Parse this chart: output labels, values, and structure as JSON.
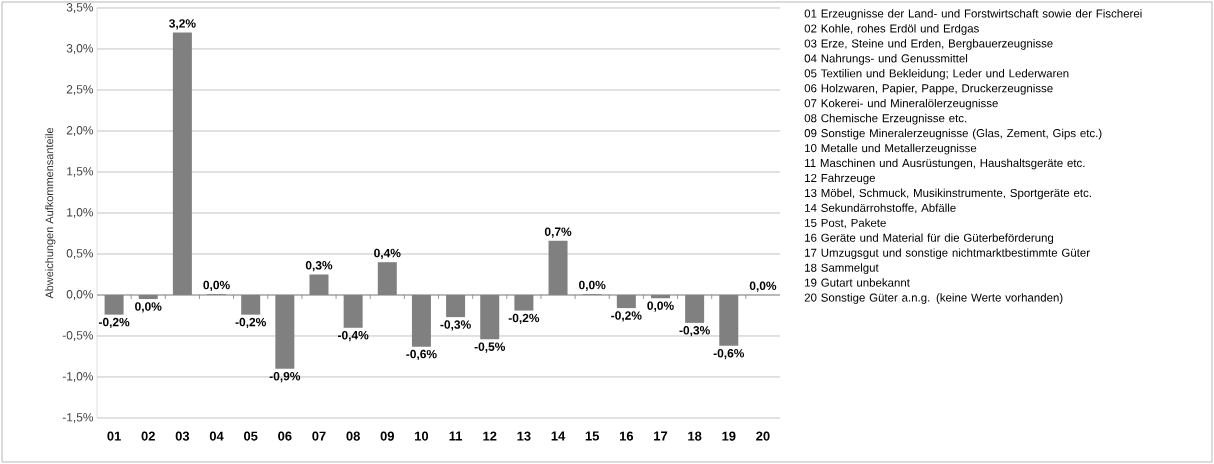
{
  "chart_data": {
    "type": "bar",
    "ylabel": "Abweichungen Aufkommensanteile",
    "categories": [
      "01",
      "02",
      "03",
      "04",
      "05",
      "06",
      "07",
      "08",
      "09",
      "10",
      "11",
      "12",
      "13",
      "14",
      "15",
      "16",
      "17",
      "18",
      "19",
      "20"
    ],
    "values": [
      -0.24,
      -0.05,
      3.2,
      0.01,
      -0.24,
      -0.9,
      0.25,
      -0.4,
      0.4,
      -0.63,
      -0.27,
      -0.54,
      -0.19,
      0.66,
      0.01,
      -0.16,
      -0.04,
      -0.34,
      -0.62,
      0
    ],
    "value_labels": [
      "-0,2%",
      "0,0%",
      "3,2%",
      "0,0%",
      "-0,2%",
      "-0,9%",
      "0,3%",
      "-0,4%",
      "0,4%",
      "-0,6%",
      "-0,3%",
      "-0,5%",
      "-0,2%",
      "0,7%",
      "0,0%",
      "-0,2%",
      "0,0%",
      "-0,3%",
      "-0,6%",
      "0,0%"
    ],
    "color": "#808080",
    "grid": "y",
    "ylim": [
      -1.5,
      3.5
    ],
    "yticks": [
      {
        "value": -1.5,
        "label": "-1,5%"
      },
      {
        "value": -1.0,
        "label": "-1,0%"
      },
      {
        "value": -0.5,
        "label": "-0,5%"
      },
      {
        "value": 0,
        "label": "0,0%"
      },
      {
        "value": 0.5,
        "label": "0,5%"
      },
      {
        "value": 1.0,
        "label": "1,0%"
      },
      {
        "value": 1.5,
        "label": "1,5%"
      },
      {
        "value": 2.0,
        "label": "2,0%"
      },
      {
        "value": 2.5,
        "label": "2,5%"
      },
      {
        "value": 3.0,
        "label": "3,0%"
      },
      {
        "value": 3.5,
        "label": "3,5%"
      }
    ],
    "annotations": [
      "01 Erzeugnisse der Land- und Forstwirtschaft sowie der Fischerei",
      "02 Kohle, rohes Erdöl und Erdgas",
      "03 Erze, Steine und Erden, Bergbauerzeugnisse",
      "04 Nahrungs- und Genussmittel",
      "05 Textilien und Bekleidung; Leder und Lederwaren",
      "06 Holzwaren, Papier, Pappe, Druckerzeugnisse",
      "07 Kokerei- und Mineralölerzeugnisse",
      "08 Chemische Erzeugnisse etc.",
      "09 Sonstige Mineralerzeugnisse (Glas, Zement, Gips etc.)",
      "10 Metalle und Metallerzeugnisse",
      "11 Maschinen und Ausrüstungen, Haushaltsgeräte etc.",
      "12 Fahrzeuge",
      "13 Möbel, Schmuck, Musikinstrumente, Sportgeräte etc.",
      "14 Sekundärrohstoffe, Abfälle",
      "15 Post, Pakete",
      "16 Geräte und Material für die Güterbeförderung",
      "17 Umzugsgut und sonstige nichtmarktbestimmte Güter",
      "18 Sammelgut",
      "19 Gutart unbekannt",
      "20 Sonstige Güter a.n.g. (keine Werte vorhanden)"
    ]
  }
}
